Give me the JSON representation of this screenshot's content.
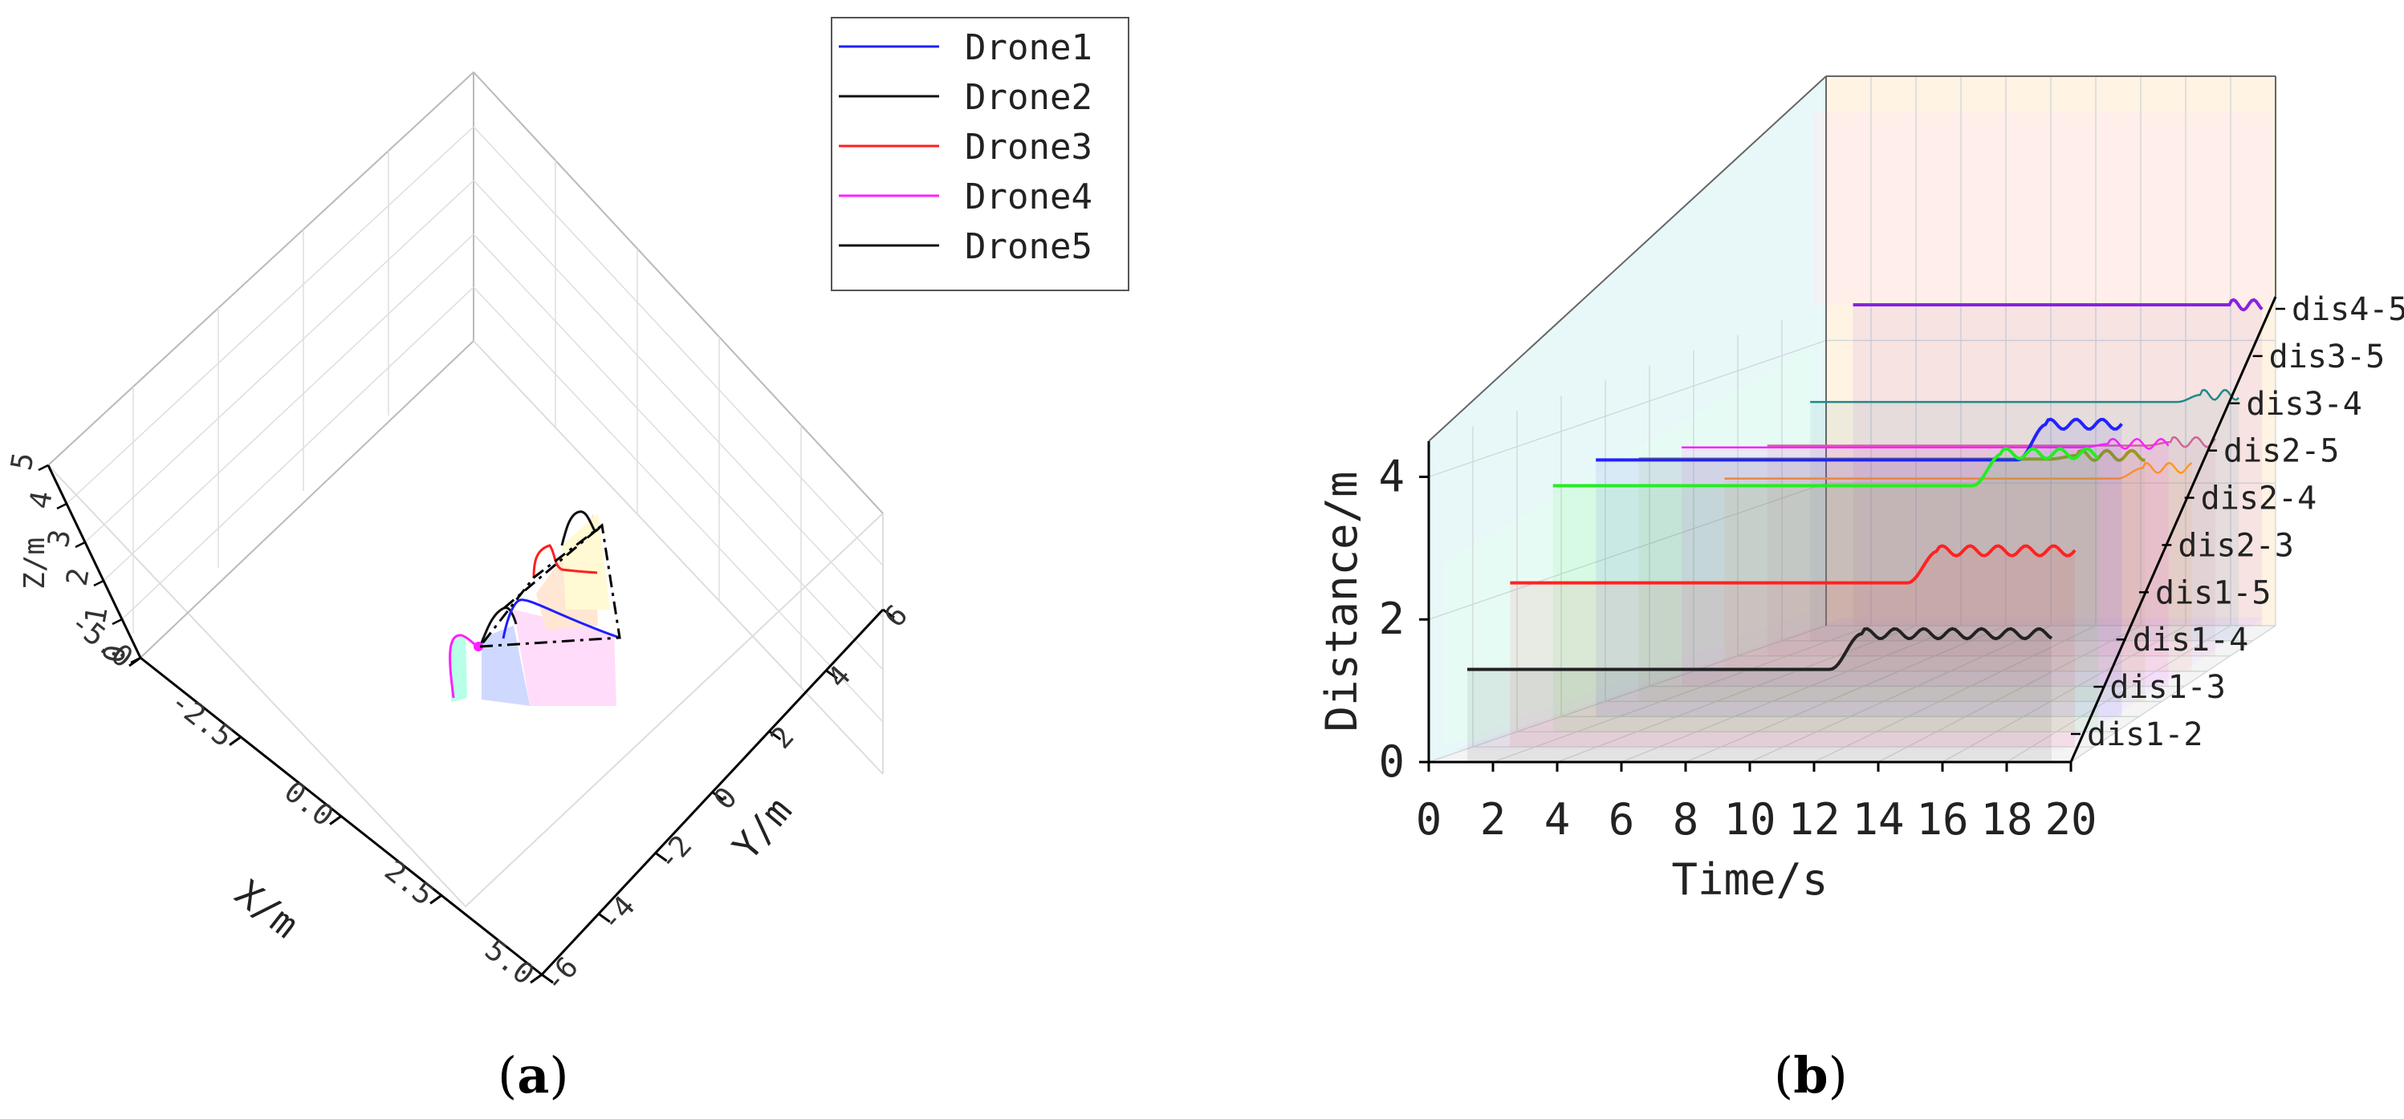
{
  "chart_data": [
    {
      "type": "line3d",
      "panel": "(a)",
      "caption_open": "(",
      "caption_letter": "a",
      "caption_close": ")",
      "xlabel": "X/m",
      "ylabel": "Y/m",
      "zlabel": "Z/m",
      "xlim": [
        -5,
        5
      ],
      "ylim": [
        -6,
        6
      ],
      "zlim": [
        0,
        5
      ],
      "x_ticks": [
        "-5.0",
        "-2.5",
        "0.0",
        "2.5",
        "5.0"
      ],
      "y_ticks": [
        "-6",
        "-4",
        "-2",
        "0",
        "2",
        "4",
        "6"
      ],
      "z_ticks": [
        "0",
        "1",
        "2",
        "3",
        "4",
        "5"
      ],
      "legend": [
        {
          "name": "Drone1",
          "color": "#1f1fff"
        },
        {
          "name": "Drone2",
          "color": "#111111"
        },
        {
          "name": "Drone3",
          "color": "#ff1f1f"
        },
        {
          "name": "Drone4",
          "color": "#ff1fff"
        },
        {
          "name": "Drone5",
          "color": "#111111"
        }
      ]
    },
    {
      "type": "line3d_waterfall",
      "panel": "(b)",
      "caption_open": "(",
      "caption_letter": "b",
      "caption_close": ")",
      "xlabel": "Time/s",
      "ylabel": "Distance/m",
      "xlim": [
        0,
        20
      ],
      "zlim": [
        0,
        4.5
      ],
      "x_ticks": [
        "0",
        "2",
        "4",
        "6",
        "8",
        "10",
        "12",
        "14",
        "16",
        "18",
        "20"
      ],
      "z_ticks": [
        "0",
        "2",
        "4"
      ],
      "categories": [
        "dis1-2",
        "dis1-3",
        "dis1-4",
        "dis1-5",
        "dis2-3",
        "dis2-4",
        "dis2-5",
        "dis3-4",
        "dis3-5",
        "dis4-5"
      ],
      "series": [
        {
          "name": "dis1-2",
          "color": "#222222",
          "start": 1.3,
          "end": 1.8,
          "t_switch": 12.5
        },
        {
          "name": "dis1-3",
          "color": "#ff2222",
          "start": 2.3,
          "end": 2.75,
          "t_switch": 14.0
        },
        {
          "name": "dis1-4",
          "color": "#22ee22",
          "start": 3.45,
          "end": 3.9,
          "t_switch": 15.2
        },
        {
          "name": "dis1-5",
          "color": "#2222ff",
          "start": 3.6,
          "end": 4.1,
          "t_switch": 15.8
        },
        {
          "name": "dis2-3",
          "color": "#999922",
          "start": 3.4,
          "end": 3.45,
          "t_switch": 16.0
        },
        {
          "name": "dis2-4",
          "color": "#ff22ff",
          "start": 3.35,
          "end": 3.4,
          "t_switch": 16.2
        },
        {
          "name": "dis2-5",
          "color": "#ff9922",
          "start": 2.7,
          "end": 2.85,
          "t_switch": 16.5
        },
        {
          "name": "dis3-4",
          "color": "#cc6699",
          "start": 2.95,
          "end": 3.0,
          "t_switch": 16.6
        },
        {
          "name": "dis3-5",
          "color": "#228888",
          "start": 3.35,
          "end": 3.45,
          "t_switch": 16.8
        },
        {
          "name": "dis4-5",
          "color": "#8822dd",
          "start": 4.5,
          "end": 4.5,
          "t_switch": 17.0
        }
      ]
    }
  ]
}
